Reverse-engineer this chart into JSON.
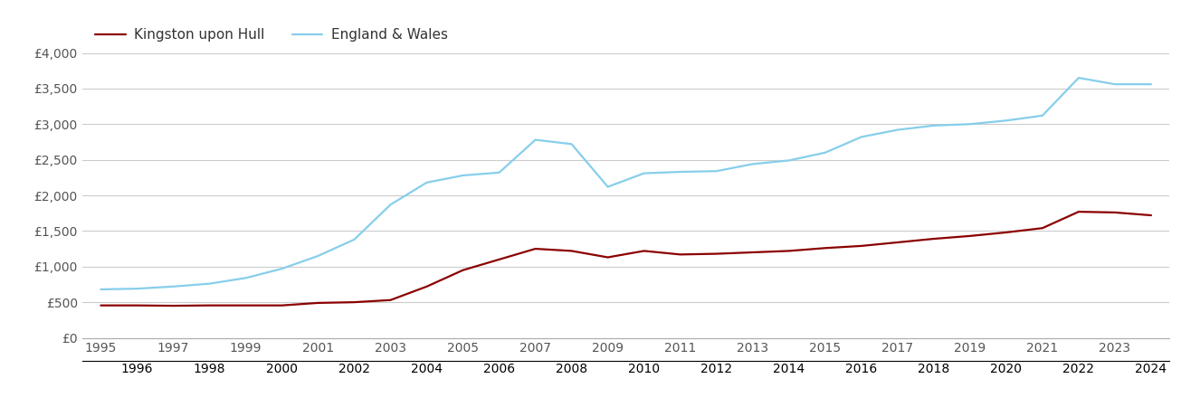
{
  "hull_years": [
    1995,
    1996,
    1997,
    1998,
    1999,
    2000,
    2001,
    2002,
    2003,
    2004,
    2005,
    2006,
    2007,
    2008,
    2009,
    2010,
    2011,
    2012,
    2013,
    2014,
    2015,
    2016,
    2017,
    2018,
    2019,
    2020,
    2021,
    2022,
    2023,
    2024
  ],
  "hull_values": [
    455,
    455,
    450,
    455,
    455,
    455,
    490,
    500,
    530,
    720,
    950,
    1100,
    1250,
    1220,
    1130,
    1220,
    1170,
    1180,
    1200,
    1220,
    1260,
    1290,
    1340,
    1390,
    1430,
    1480,
    1540,
    1770,
    1760,
    1720
  ],
  "ew_years": [
    1995,
    1996,
    1997,
    1998,
    1999,
    2000,
    2001,
    2002,
    2003,
    2004,
    2005,
    2006,
    2007,
    2008,
    2009,
    2010,
    2011,
    2012,
    2013,
    2014,
    2015,
    2016,
    2017,
    2018,
    2019,
    2020,
    2021,
    2022,
    2023,
    2024
  ],
  "ew_values": [
    680,
    690,
    720,
    760,
    840,
    970,
    1150,
    1380,
    1870,
    2180,
    2280,
    2320,
    2780,
    2720,
    2120,
    2310,
    2330,
    2340,
    2440,
    2490,
    2600,
    2820,
    2920,
    2980,
    3000,
    3050,
    3120,
    3650,
    3560,
    3560
  ],
  "hull_color": "#8b0000",
  "ew_color": "#87CEEB",
  "hull_label": "Kingston upon Hull",
  "ew_label": "England & Wales",
  "ylim": [
    0,
    4000
  ],
  "yticks": [
    0,
    500,
    1000,
    1500,
    2000,
    2500,
    3000,
    3500,
    4000
  ],
  "ytick_labels": [
    "£0",
    "£500",
    "£1,000",
    "£1,500",
    "£2,000",
    "£2,500",
    "£3,000",
    "£3,500",
    "£4,000"
  ],
  "odd_years": [
    1995,
    1997,
    1999,
    2001,
    2003,
    2005,
    2007,
    2009,
    2011,
    2013,
    2015,
    2017,
    2019,
    2021,
    2023
  ],
  "even_years": [
    1996,
    1998,
    2000,
    2002,
    2004,
    2006,
    2008,
    2010,
    2012,
    2014,
    2016,
    2018,
    2020,
    2022,
    2024
  ],
  "line_width": 1.6,
  "background_color": "#ffffff",
  "grid_color": "#cccccc",
  "tick_color": "#555555",
  "font_size_tick": 10,
  "font_size_ytick": 10
}
